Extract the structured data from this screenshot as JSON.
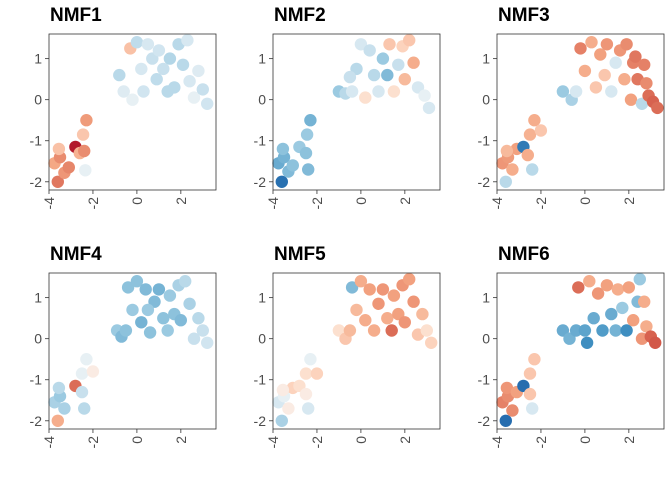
{
  "chart_data": [
    {
      "type": "scatter",
      "title": "NMF1",
      "xticks": [
        "-4",
        "-2",
        "0",
        "2"
      ],
      "yticks": [
        "-2",
        "-1",
        "0",
        "1"
      ],
      "xlim": [
        -4.0,
        3.6
      ],
      "ylim": [
        -2.2,
        1.6
      ],
      "color_scale": "RdBu",
      "points": [
        {
          "x": -3.6,
          "y": -2.0,
          "v": 0.55
        },
        {
          "x": -3.75,
          "y": -1.55,
          "v": 0.32
        },
        {
          "x": -3.5,
          "y": -1.4,
          "v": 0.45
        },
        {
          "x": -3.3,
          "y": -1.78,
          "v": 0.4
        },
        {
          "x": -3.1,
          "y": -1.65,
          "v": 0.48
        },
        {
          "x": -2.8,
          "y": -1.15,
          "v": 1.0
        },
        {
          "x": -2.6,
          "y": -1.3,
          "v": 0.28
        },
        {
          "x": -2.4,
          "y": -1.25,
          "v": 0.45
        },
        {
          "x": -2.3,
          "y": -0.5,
          "v": 0.38
        },
        {
          "x": -2.45,
          "y": -0.85,
          "v": 0.2
        },
        {
          "x": -2.35,
          "y": -1.72,
          "v": -0.05
        },
        {
          "x": -3.55,
          "y": -1.2,
          "v": 0.22
        },
        {
          "x": -0.6,
          "y": 0.2,
          "v": -0.08
        },
        {
          "x": -0.3,
          "y": 1.25,
          "v": 0.22
        },
        {
          "x": -0.2,
          "y": 0.0,
          "v": -0.05
        },
        {
          "x": 0.0,
          "y": 1.4,
          "v": -0.18
        },
        {
          "x": 0.2,
          "y": 0.75,
          "v": -0.1
        },
        {
          "x": 0.3,
          "y": 0.2,
          "v": -0.12
        },
        {
          "x": 0.5,
          "y": 1.35,
          "v": -0.1
        },
        {
          "x": 0.7,
          "y": 1.0,
          "v": -0.15
        },
        {
          "x": 0.9,
          "y": 0.5,
          "v": -0.18
        },
        {
          "x": 1.0,
          "y": 1.2,
          "v": -0.12
        },
        {
          "x": 1.2,
          "y": 0.75,
          "v": -0.15
        },
        {
          "x": 1.4,
          "y": 0.2,
          "v": -0.2
        },
        {
          "x": 1.5,
          "y": 1.0,
          "v": -0.22
        },
        {
          "x": 1.7,
          "y": 0.3,
          "v": -0.2
        },
        {
          "x": 1.9,
          "y": 1.35,
          "v": -0.2
        },
        {
          "x": 2.1,
          "y": 0.85,
          "v": -0.2
        },
        {
          "x": 2.3,
          "y": 1.45,
          "v": -0.1
        },
        {
          "x": 2.4,
          "y": 0.45,
          "v": -0.1
        },
        {
          "x": 2.6,
          "y": 0.05,
          "v": -0.05
        },
        {
          "x": 2.8,
          "y": 0.7,
          "v": -0.08
        },
        {
          "x": 3.0,
          "y": 0.25,
          "v": -0.15
        },
        {
          "x": 3.2,
          "y": -0.1,
          "v": -0.12
        },
        {
          "x": -0.8,
          "y": 0.6,
          "v": -0.2
        }
      ]
    },
    {
      "type": "scatter",
      "title": "NMF2",
      "xticks": [
        "-4",
        "-2",
        "0",
        "2"
      ],
      "yticks": [
        "-2",
        "-1",
        "0",
        "1"
      ],
      "xlim": [
        -4.0,
        3.6
      ],
      "ylim": [
        -2.2,
        1.6
      ],
      "color_scale": "RdBu",
      "points": [
        {
          "x": -3.6,
          "y": -2.0,
          "v": -0.92
        },
        {
          "x": -3.75,
          "y": -1.55,
          "v": -0.5
        },
        {
          "x": -3.5,
          "y": -1.4,
          "v": -0.45
        },
        {
          "x": -3.3,
          "y": -1.75,
          "v": -0.4
        },
        {
          "x": -3.1,
          "y": -1.6,
          "v": -0.35
        },
        {
          "x": -2.8,
          "y": -1.15,
          "v": -0.3
        },
        {
          "x": -2.5,
          "y": -1.3,
          "v": -0.35
        },
        {
          "x": -2.4,
          "y": -1.7,
          "v": -0.4
        },
        {
          "x": -2.3,
          "y": -0.5,
          "v": -0.45
        },
        {
          "x": -2.45,
          "y": -0.85,
          "v": -0.3
        },
        {
          "x": -3.55,
          "y": -1.2,
          "v": -0.35
        },
        {
          "x": -1.0,
          "y": 0.2,
          "v": -0.3
        },
        {
          "x": -0.7,
          "y": 0.15,
          "v": -0.2
        },
        {
          "x": -0.4,
          "y": 0.2,
          "v": -0.1
        },
        {
          "x": -0.2,
          "y": 0.75,
          "v": -0.2
        },
        {
          "x": 0.0,
          "y": 1.35,
          "v": -0.1
        },
        {
          "x": 0.2,
          "y": 0.05,
          "v": 0.1
        },
        {
          "x": 0.4,
          "y": 1.2,
          "v": -0.15
        },
        {
          "x": 0.6,
          "y": 0.6,
          "v": -0.2
        },
        {
          "x": 0.8,
          "y": 0.2,
          "v": -0.1
        },
        {
          "x": 1.0,
          "y": 1.0,
          "v": -0.3
        },
        {
          "x": 1.2,
          "y": 0.6,
          "v": -0.4
        },
        {
          "x": 1.3,
          "y": 1.35,
          "v": 0.2
        },
        {
          "x": 1.5,
          "y": 0.2,
          "v": 0.1
        },
        {
          "x": 1.7,
          "y": 0.85,
          "v": -0.15
        },
        {
          "x": 1.9,
          "y": 1.3,
          "v": 0.15
        },
        {
          "x": 2.0,
          "y": 0.5,
          "v": 0.25
        },
        {
          "x": 2.2,
          "y": 1.45,
          "v": 0.2
        },
        {
          "x": 2.4,
          "y": 0.9,
          "v": 0.3
        },
        {
          "x": 2.6,
          "y": 0.3,
          "v": -0.1
        },
        {
          "x": 2.9,
          "y": 0.1,
          "v": -0.05
        },
        {
          "x": 3.1,
          "y": -0.2,
          "v": -0.1
        },
        {
          "x": -0.5,
          "y": 0.55,
          "v": -0.15
        }
      ]
    },
    {
      "type": "scatter",
      "title": "NMF3",
      "xticks": [
        "-4",
        "-2",
        "0",
        "2"
      ],
      "yticks": [
        "-2",
        "-1",
        "0",
        "1"
      ],
      "xlim": [
        -4.0,
        3.6
      ],
      "ylim": [
        -2.2,
        1.6
      ],
      "color_scale": "RdBu",
      "points": [
        {
          "x": -3.6,
          "y": -2.0,
          "v": -0.2
        },
        {
          "x": -3.75,
          "y": -1.55,
          "v": 0.4
        },
        {
          "x": -3.5,
          "y": -1.4,
          "v": 0.38
        },
        {
          "x": -3.3,
          "y": -1.7,
          "v": 0.3
        },
        {
          "x": -3.1,
          "y": -1.2,
          "v": 0.35
        },
        {
          "x": -2.8,
          "y": -1.15,
          "v": -0.85
        },
        {
          "x": -2.6,
          "y": -1.35,
          "v": 0.3
        },
        {
          "x": -2.4,
          "y": -1.7,
          "v": -0.2
        },
        {
          "x": -2.3,
          "y": -0.5,
          "v": 0.3
        },
        {
          "x": -2.5,
          "y": -0.85,
          "v": 0.28
        },
        {
          "x": -2.0,
          "y": -0.75,
          "v": 0.2
        },
        {
          "x": -3.55,
          "y": -1.25,
          "v": 0.25
        },
        {
          "x": -1.0,
          "y": 0.2,
          "v": -0.3
        },
        {
          "x": -0.6,
          "y": 0.0,
          "v": -0.25
        },
        {
          "x": -0.4,
          "y": 0.2,
          "v": -0.1
        },
        {
          "x": -0.2,
          "y": 1.25,
          "v": 0.5
        },
        {
          "x": 0.0,
          "y": 0.7,
          "v": 0.3
        },
        {
          "x": 0.3,
          "y": 1.4,
          "v": 0.3
        },
        {
          "x": 0.5,
          "y": 0.3,
          "v": 0.2
        },
        {
          "x": 0.7,
          "y": 1.1,
          "v": 0.35
        },
        {
          "x": 0.9,
          "y": 0.6,
          "v": 0.2
        },
        {
          "x": 1.0,
          "y": 1.35,
          "v": 0.4
        },
        {
          "x": 1.2,
          "y": 0.2,
          "v": -0.1
        },
        {
          "x": 1.4,
          "y": 0.9,
          "v": -0.1
        },
        {
          "x": 1.6,
          "y": 1.2,
          "v": 0.4
        },
        {
          "x": 1.8,
          "y": 0.5,
          "v": 0.3
        },
        {
          "x": 1.9,
          "y": 1.35,
          "v": 0.45
        },
        {
          "x": 2.1,
          "y": 0.0,
          "v": 0.35
        },
        {
          "x": 2.2,
          "y": 0.9,
          "v": 0.5
        },
        {
          "x": 2.3,
          "y": 1.05,
          "v": 0.55
        },
        {
          "x": 2.4,
          "y": 0.5,
          "v": 0.55
        },
        {
          "x": 2.6,
          "y": -0.1,
          "v": -0.2
        },
        {
          "x": 2.7,
          "y": 0.85,
          "v": 0.5
        },
        {
          "x": 2.8,
          "y": 0.4,
          "v": 0.45
        },
        {
          "x": 2.9,
          "y": 0.1,
          "v": 0.6
        },
        {
          "x": 3.1,
          "y": -0.05,
          "v": 0.65
        },
        {
          "x": 3.3,
          "y": -0.2,
          "v": 0.6
        }
      ]
    },
    {
      "type": "scatter",
      "title": "NMF4",
      "xticks": [
        "-4",
        "-2",
        "0",
        "2"
      ],
      "yticks": [
        "-2",
        "-1",
        "0",
        "1"
      ],
      "xlim": [
        -4.0,
        3.6
      ],
      "ylim": [
        -2.2,
        1.6
      ],
      "color_scale": "RdBu",
      "points": [
        {
          "x": -3.6,
          "y": -2.0,
          "v": 0.3
        },
        {
          "x": -3.75,
          "y": -1.55,
          "v": -0.25
        },
        {
          "x": -3.5,
          "y": -1.4,
          "v": -0.3
        },
        {
          "x": -3.3,
          "y": -1.7,
          "v": -0.25
        },
        {
          "x": -3.55,
          "y": -1.2,
          "v": -0.2
        },
        {
          "x": -2.8,
          "y": -1.15,
          "v": 0.6
        },
        {
          "x": -2.5,
          "y": -1.3,
          "v": -0.15
        },
        {
          "x": -2.4,
          "y": -1.7,
          "v": -0.2
        },
        {
          "x": -2.3,
          "y": -0.5,
          "v": -0.05
        },
        {
          "x": -2.5,
          "y": -0.85,
          "v": -0.05
        },
        {
          "x": -2.0,
          "y": -0.8,
          "v": 0.05
        },
        {
          "x": -0.9,
          "y": 0.2,
          "v": -0.3
        },
        {
          "x": -0.7,
          "y": 0.05,
          "v": -0.4
        },
        {
          "x": -0.5,
          "y": 0.2,
          "v": -0.35
        },
        {
          "x": -0.4,
          "y": 1.25,
          "v": -0.35
        },
        {
          "x": -0.2,
          "y": 0.7,
          "v": -0.3
        },
        {
          "x": 0.0,
          "y": 1.4,
          "v": -0.35
        },
        {
          "x": 0.2,
          "y": 0.4,
          "v": -0.45
        },
        {
          "x": 0.4,
          "y": 1.2,
          "v": -0.4
        },
        {
          "x": 0.6,
          "y": 0.15,
          "v": -0.35
        },
        {
          "x": 0.8,
          "y": 0.9,
          "v": -0.4
        },
        {
          "x": 1.0,
          "y": 1.2,
          "v": -0.45
        },
        {
          "x": 1.2,
          "y": 0.5,
          "v": -0.35
        },
        {
          "x": 1.4,
          "y": 0.2,
          "v": -0.3
        },
        {
          "x": 1.5,
          "y": 1.05,
          "v": -0.3
        },
        {
          "x": 1.7,
          "y": 0.6,
          "v": -0.35
        },
        {
          "x": 1.9,
          "y": 1.3,
          "v": -0.25
        },
        {
          "x": 2.0,
          "y": 0.45,
          "v": -0.4
        },
        {
          "x": 2.2,
          "y": 1.4,
          "v": -0.2
        },
        {
          "x": 2.4,
          "y": 0.85,
          "v": -0.25
        },
        {
          "x": 2.6,
          "y": 0.0,
          "v": -0.15
        },
        {
          "x": 2.8,
          "y": 0.5,
          "v": -0.2
        },
        {
          "x": 3.0,
          "y": 0.2,
          "v": -0.15
        },
        {
          "x": 3.2,
          "y": -0.1,
          "v": -0.12
        },
        {
          "x": 0.5,
          "y": 0.7,
          "v": -0.3
        }
      ]
    },
    {
      "type": "scatter",
      "title": "NMF5",
      "xticks": [
        "-4",
        "-2",
        "0",
        "2"
      ],
      "yticks": [
        "-2",
        "-1",
        "0",
        "1"
      ],
      "xlim": [
        -4.0,
        3.6
      ],
      "ylim": [
        -2.2,
        1.6
      ],
      "color_scale": "RdBu",
      "points": [
        {
          "x": -3.6,
          "y": -2.0,
          "v": -0.25
        },
        {
          "x": -3.75,
          "y": -1.55,
          "v": -0.1
        },
        {
          "x": -3.5,
          "y": -1.4,
          "v": -0.05
        },
        {
          "x": -3.3,
          "y": -1.7,
          "v": 0.05
        },
        {
          "x": -3.1,
          "y": -1.2,
          "v": 0.15
        },
        {
          "x": -2.8,
          "y": -1.15,
          "v": 0.1
        },
        {
          "x": -2.5,
          "y": -1.35,
          "v": 0.05
        },
        {
          "x": -2.4,
          "y": -1.7,
          "v": -0.1
        },
        {
          "x": -2.3,
          "y": -0.5,
          "v": -0.05
        },
        {
          "x": -2.5,
          "y": -0.85,
          "v": 0.1
        },
        {
          "x": -2.0,
          "y": -0.85,
          "v": 0.15
        },
        {
          "x": -3.55,
          "y": -1.25,
          "v": 0.05
        },
        {
          "x": -1.0,
          "y": 0.2,
          "v": 0.1
        },
        {
          "x": -0.7,
          "y": 0.0,
          "v": 0.2
        },
        {
          "x": -0.5,
          "y": 0.2,
          "v": 0.25
        },
        {
          "x": -0.4,
          "y": 1.25,
          "v": -0.4
        },
        {
          "x": -0.2,
          "y": 0.7,
          "v": 0.25
        },
        {
          "x": 0.0,
          "y": 1.4,
          "v": 0.3
        },
        {
          "x": 0.2,
          "y": 0.45,
          "v": 0.3
        },
        {
          "x": 0.4,
          "y": 1.2,
          "v": 0.35
        },
        {
          "x": 0.6,
          "y": 0.2,
          "v": 0.3
        },
        {
          "x": 0.8,
          "y": 0.85,
          "v": 0.4
        },
        {
          "x": 1.0,
          "y": 1.2,
          "v": 0.4
        },
        {
          "x": 1.2,
          "y": 0.5,
          "v": 0.3
        },
        {
          "x": 1.4,
          "y": 0.2,
          "v": 0.6
        },
        {
          "x": 1.5,
          "y": 1.05,
          "v": 0.35
        },
        {
          "x": 1.7,
          "y": 0.6,
          "v": 0.35
        },
        {
          "x": 1.9,
          "y": 1.3,
          "v": 0.4
        },
        {
          "x": 2.0,
          "y": 0.4,
          "v": 0.4
        },
        {
          "x": 2.2,
          "y": 1.45,
          "v": 0.35
        },
        {
          "x": 2.4,
          "y": 0.9,
          "v": 0.4
        },
        {
          "x": 2.6,
          "y": 0.1,
          "v": 0.2
        },
        {
          "x": 2.8,
          "y": 0.6,
          "v": 0.25
        },
        {
          "x": 3.0,
          "y": 0.2,
          "v": 0.1
        },
        {
          "x": 3.2,
          "y": -0.1,
          "v": 0.15
        }
      ]
    },
    {
      "type": "scatter",
      "title": "NMF6",
      "xticks": [
        "-4",
        "-2",
        "0",
        "2"
      ],
      "yticks": [
        "-2",
        "-1",
        "0",
        "1"
      ],
      "xlim": [
        -4.0,
        3.6
      ],
      "ylim": [
        -2.2,
        1.6
      ],
      "color_scale": "RdBu",
      "points": [
        {
          "x": -3.6,
          "y": -2.0,
          "v": -0.95
        },
        {
          "x": -3.75,
          "y": -1.55,
          "v": 0.5
        },
        {
          "x": -3.5,
          "y": -1.4,
          "v": 0.45
        },
        {
          "x": -3.3,
          "y": -1.75,
          "v": 0.45
        },
        {
          "x": -3.55,
          "y": -1.2,
          "v": 0.4
        },
        {
          "x": -3.1,
          "y": -1.3,
          "v": 0.35
        },
        {
          "x": -2.8,
          "y": -1.15,
          "v": -0.95
        },
        {
          "x": -2.5,
          "y": -1.35,
          "v": 0.2
        },
        {
          "x": -2.4,
          "y": -1.7,
          "v": -0.1
        },
        {
          "x": -2.3,
          "y": -0.5,
          "v": 0.2
        },
        {
          "x": -2.5,
          "y": -0.85,
          "v": 0.2
        },
        {
          "x": -1.0,
          "y": 0.2,
          "v": -0.5
        },
        {
          "x": -0.7,
          "y": 0.0,
          "v": -0.45
        },
        {
          "x": -0.4,
          "y": 0.2,
          "v": -0.5
        },
        {
          "x": -0.3,
          "y": 1.25,
          "v": 0.6
        },
        {
          "x": 0.0,
          "y": 0.2,
          "v": -0.55
        },
        {
          "x": 0.1,
          "y": -0.1,
          "v": -0.7
        },
        {
          "x": 0.2,
          "y": 1.4,
          "v": 0.3
        },
        {
          "x": 0.4,
          "y": 0.5,
          "v": -0.5
        },
        {
          "x": 0.6,
          "y": 1.1,
          "v": 0.4
        },
        {
          "x": 0.8,
          "y": 0.2,
          "v": -0.6
        },
        {
          "x": 1.0,
          "y": 1.3,
          "v": 0.35
        },
        {
          "x": 1.2,
          "y": 0.6,
          "v": -0.5
        },
        {
          "x": 1.4,
          "y": 0.2,
          "v": -0.45
        },
        {
          "x": 1.5,
          "y": 1.2,
          "v": 0.3
        },
        {
          "x": 1.7,
          "y": 0.75,
          "v": -0.3
        },
        {
          "x": 1.9,
          "y": 0.2,
          "v": -0.7
        },
        {
          "x": 2.0,
          "y": 1.25,
          "v": 0.35
        },
        {
          "x": 2.2,
          "y": 0.45,
          "v": 0.35
        },
        {
          "x": 2.4,
          "y": 0.9,
          "v": -0.4
        },
        {
          "x": 2.5,
          "y": 1.45,
          "v": -0.3
        },
        {
          "x": 2.6,
          "y": 0.0,
          "v": 0.4
        },
        {
          "x": 2.8,
          "y": 0.3,
          "v": 0.3
        },
        {
          "x": 3.0,
          "y": 0.05,
          "v": 0.65
        },
        {
          "x": 3.2,
          "y": -0.1,
          "v": 0.7
        },
        {
          "x": 2.7,
          "y": 0.9,
          "v": 0.3
        }
      ]
    }
  ]
}
